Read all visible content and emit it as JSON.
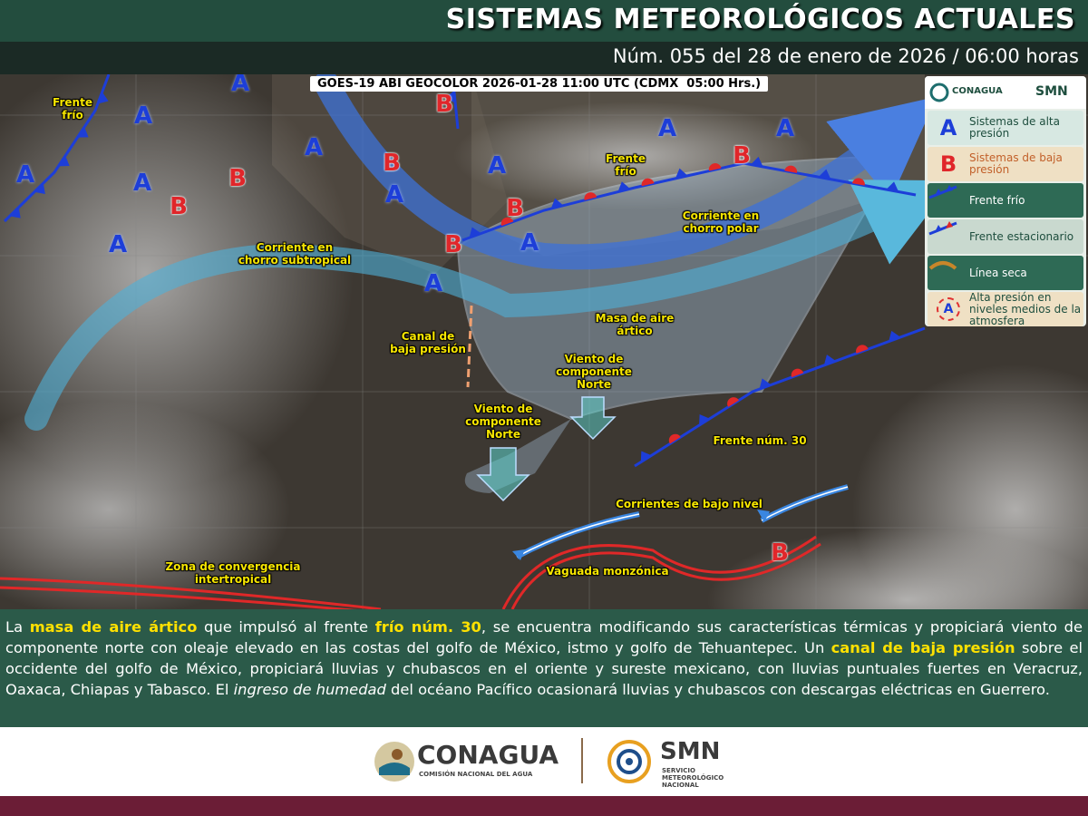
{
  "header": {
    "title": "SISTEMAS METEOROLÓGICOS ACTUALES",
    "subtitle": "Núm. 055 del 28 de enero de 2026 / 06:00 horas"
  },
  "map": {
    "satellite_caption": "GOES-19 ABI GEOCOLOR 2026-01-28 11:00 UTC (CDMX  05:00 Hrs.)",
    "labels": [
      "Frente frío",
      "Corriente en chorro subtropical",
      "Canal de baja presión",
      "Masa de aire ártico",
      "Frente frío",
      "Corriente en chorro polar",
      "Viento de componente Norte",
      "Viento de componente Norte",
      "Frente núm. 30",
      "Corrientes de bajo nivel",
      "Zona de convergencia intertropical",
      "Vaguada monzónica"
    ],
    "high_pressure_centers": [
      "A",
      "A",
      "A",
      "A",
      "A",
      "A",
      "A",
      "A",
      "A",
      "A",
      "A",
      "A"
    ],
    "low_pressure_centers": [
      "B",
      "B",
      "B",
      "B",
      "B",
      "B",
      "B",
      "B"
    ]
  },
  "legend": {
    "logo_left": "CONAGUA",
    "logo_right": "SMN",
    "items": [
      {
        "symbol": "A",
        "label": "Sistemas de alta presión"
      },
      {
        "symbol": "B",
        "label": "Sistemas de baja presión"
      },
      {
        "label": "Frente frío"
      },
      {
        "label": "Frente estacionario"
      },
      {
        "label": "Línea seca"
      },
      {
        "symbol": "A",
        "label": "Alta presión en niveles medios de la atmosfera"
      }
    ]
  },
  "paragraph": [
    {
      "text": "La "
    },
    {
      "text": "masa de aire ártico",
      "emphasis": "highlight"
    },
    {
      "text": " que impulsó al frente "
    },
    {
      "text": "frío núm. 30",
      "emphasis": "highlight"
    },
    {
      "text": ", se encuentra modificando sus características térmicas y propiciará viento de componente norte con oleaje elevado en las costas del golfo de México, istmo y golfo de Tehuantepec. Un "
    },
    {
      "text": "canal de baja presión",
      "emphasis": "highlight"
    },
    {
      "text": " sobre el occidente del golfo de México, propiciará lluvias y chubascos en el oriente y sureste mexicano, con lluvias puntuales fuertes en Veracruz, Oaxaca, Chiapas y Tabasco. El "
    },
    {
      "text": "ingreso de humedad",
      "emphasis": "italic"
    },
    {
      "text": " del océano Pacífico ocasionará lluvias y chubascos con descargas eléctricas en Guerrero."
    }
  ],
  "footer": {
    "conagua": "CONAGUA",
    "conagua_sub": "COMISIÓN NACIONAL DEL AGUA",
    "smn": "SMN",
    "smn_sub": "SERVICIO METEOROLÓGICO NACIONAL"
  }
}
